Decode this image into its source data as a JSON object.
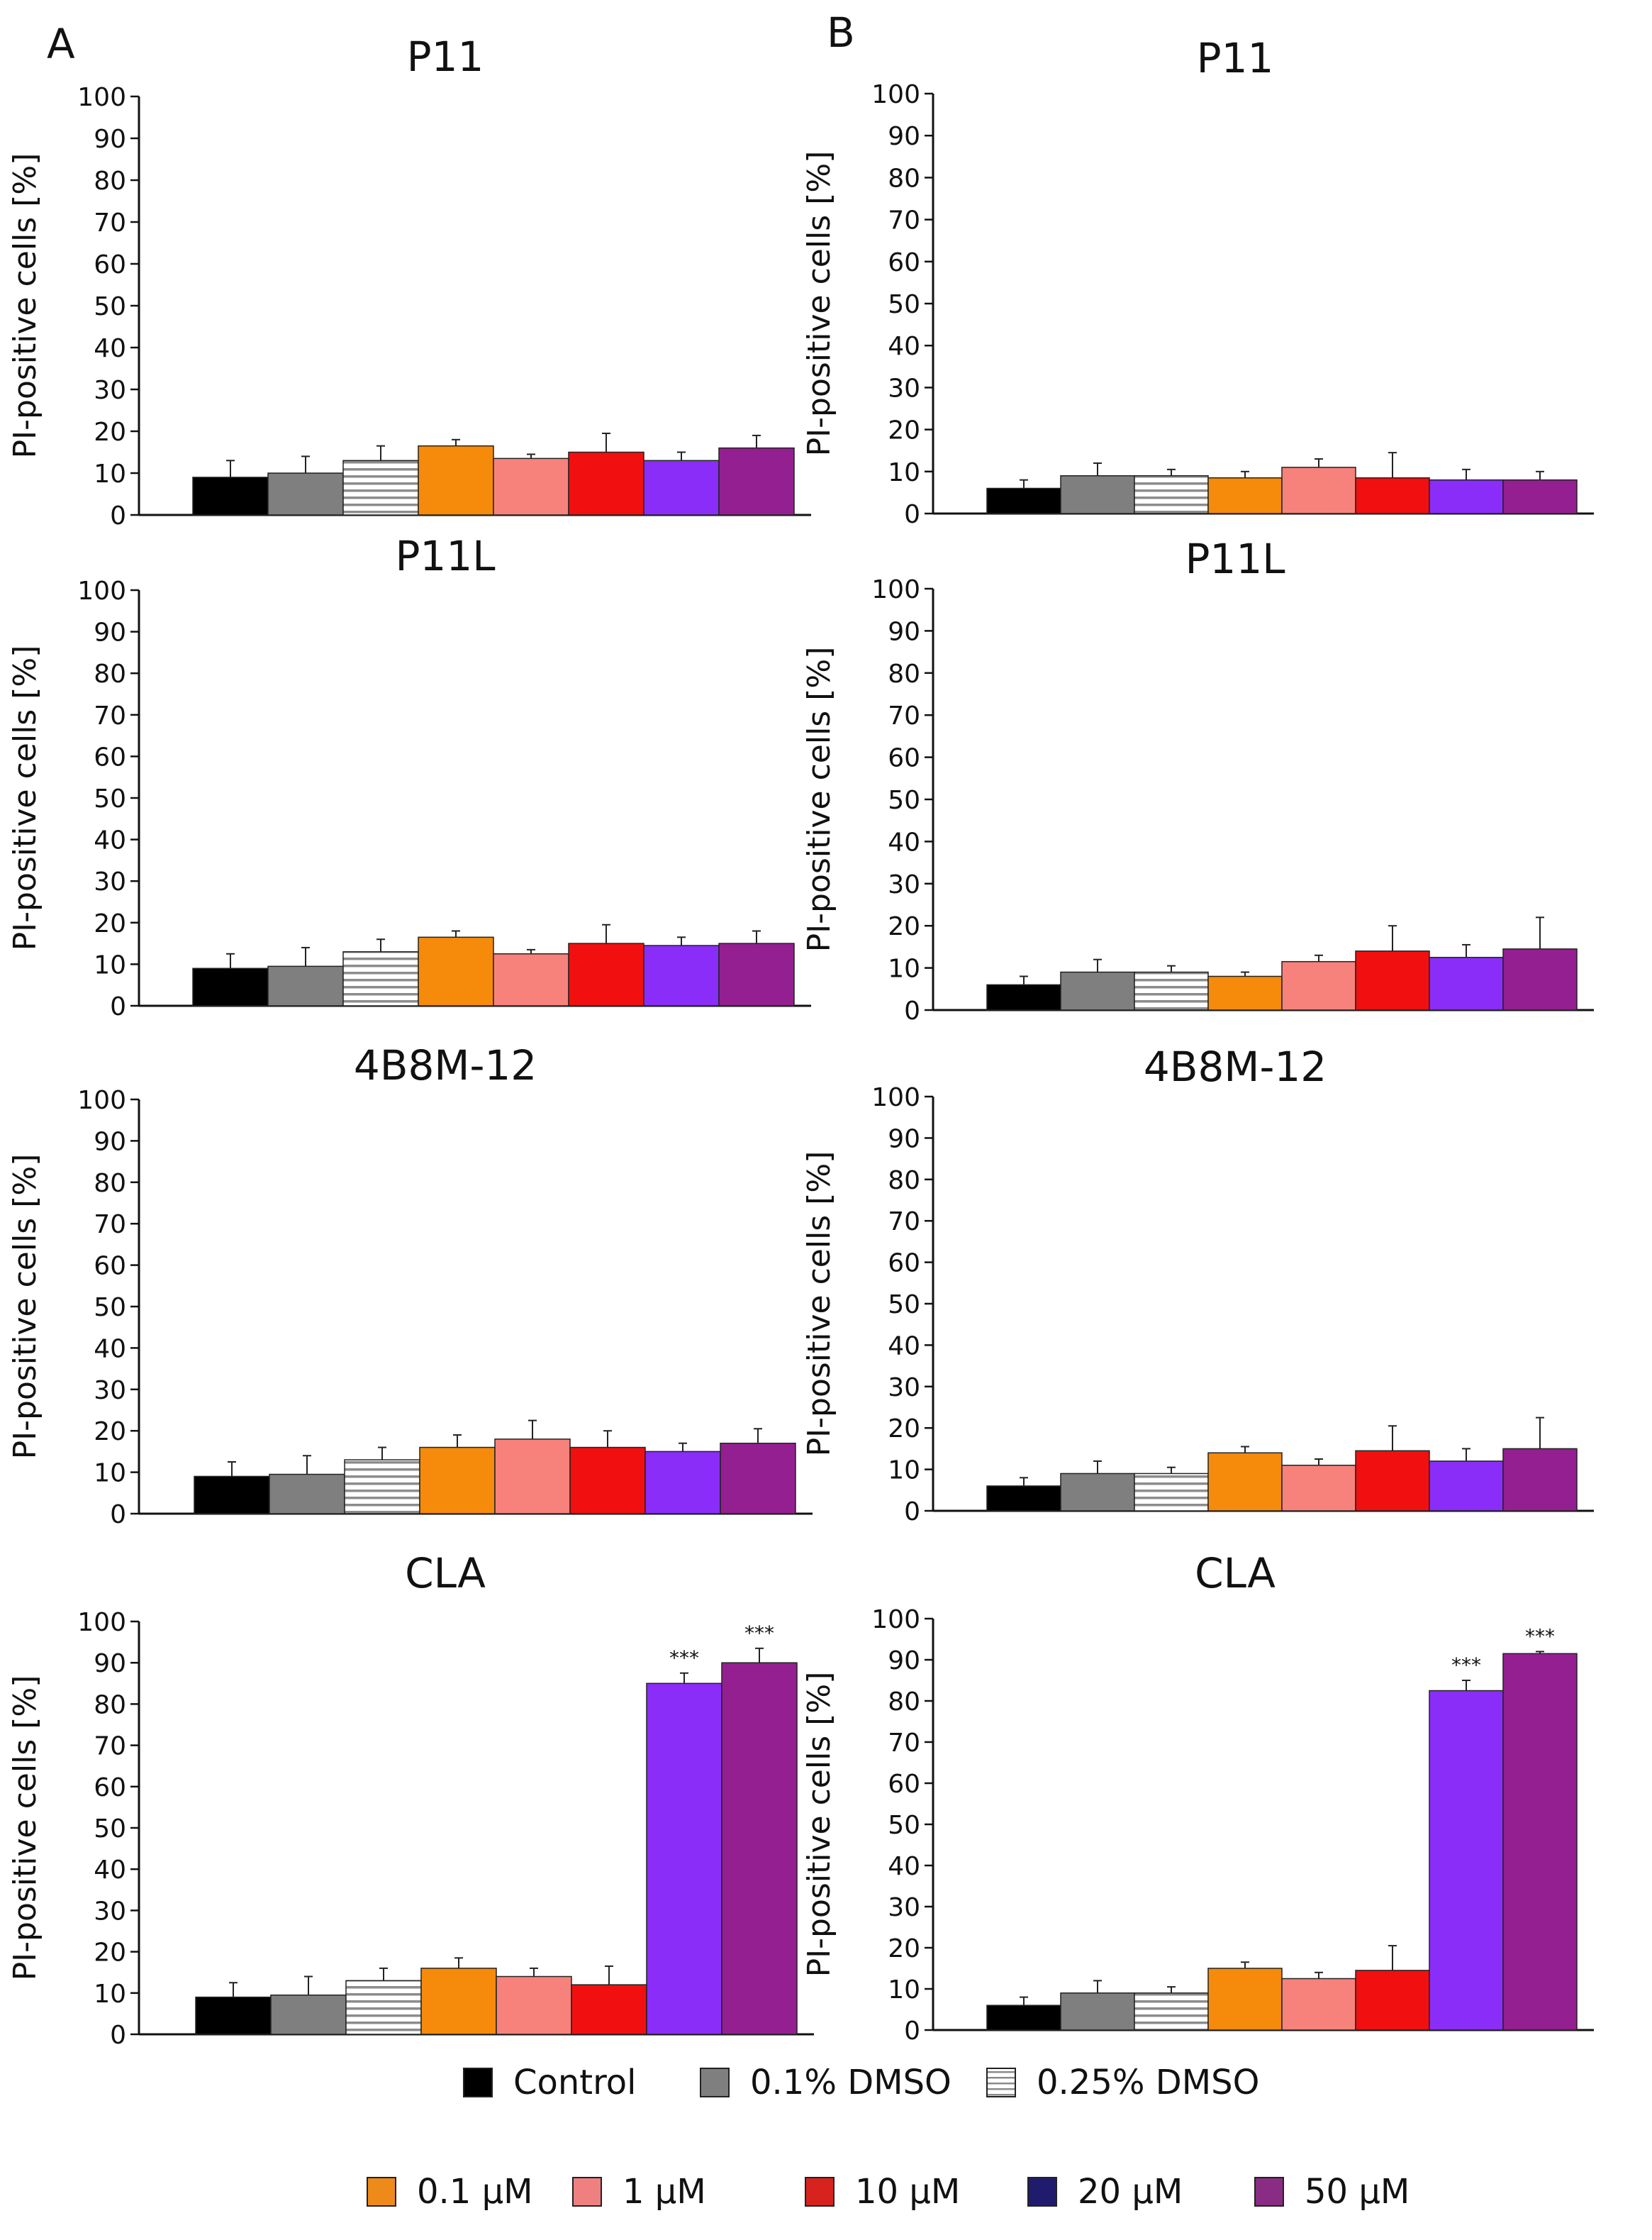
{
  "figure": {
    "panel_letters": [
      "A",
      "B"
    ],
    "ylabel": "PI-positive cells [%]"
  },
  "colors": {
    "control": "#000000",
    "dmso01": "#7f7f7f",
    "dmso025_fill": "#ffffff",
    "dmso025_stripe": "#8c8c8c",
    "c01": "#f58a0b",
    "c1": "#f7827b",
    "c10": "#f20f0f",
    "c20": "#8b2df8",
    "c50": "#941f90",
    "legend20": "#211b6e",
    "legend50": "#8a2c83",
    "legend10": "#d8221e",
    "legend1": "#f08080",
    "legend01": "#ee8a1a",
    "axis": "#111111"
  },
  "legend": {
    "row1": [
      {
        "label": "Control",
        "swatch": "control"
      },
      {
        "label": "0.1% DMSO",
        "swatch": "dmso01"
      },
      {
        "label": "0.25% DMSO",
        "swatch": "stripes"
      }
    ],
    "row2": [
      {
        "label": "0.1 µM",
        "swatch": "legend01"
      },
      {
        "label": "1 µM",
        "swatch": "legend1"
      },
      {
        "label": "10 µM",
        "swatch": "legend10"
      },
      {
        "label": "20 µM",
        "swatch": "legend20"
      },
      {
        "label": "50 µM",
        "swatch": "legend50"
      }
    ]
  },
  "chart_data": [
    {
      "panel": "A",
      "title": "P11",
      "type": "bar",
      "categories": [
        "Control",
        "0.1% DMSO",
        "0.25% DMSO",
        "0.1 µM",
        "1 µM",
        "10 µM",
        "20 µM",
        "50 µM"
      ],
      "values": [
        9,
        10,
        13,
        16.5,
        13.5,
        15,
        13,
        16
      ],
      "errors": [
        4,
        4,
        3.5,
        1.5,
        1,
        4.5,
        2,
        3
      ],
      "annotations": [
        "",
        "",
        "",
        "",
        "",
        "",
        "",
        ""
      ],
      "ylabel": "PI-positive cells [%]",
      "ylim": [
        0,
        100
      ],
      "yticks": [
        0,
        10,
        20,
        30,
        40,
        50,
        60,
        70,
        80,
        90,
        100
      ]
    },
    {
      "panel": "B",
      "title": "P11",
      "type": "bar",
      "categories": [
        "Control",
        "0.1% DMSO",
        "0.25% DMSO",
        "0.1 µM",
        "1 µM",
        "10 µM",
        "20 µM",
        "50 µM"
      ],
      "values": [
        6,
        9,
        9,
        8.5,
        11,
        8.5,
        8,
        8
      ],
      "errors": [
        2,
        3,
        1.5,
        1.5,
        2,
        6,
        2.5,
        2
      ],
      "annotations": [
        "",
        "",
        "",
        "",
        "",
        "",
        "",
        ""
      ],
      "ylabel": "PI-positive cells [%]",
      "ylim": [
        0,
        100
      ],
      "yticks": [
        0,
        10,
        20,
        30,
        40,
        50,
        60,
        70,
        80,
        90,
        100
      ]
    },
    {
      "panel": "A",
      "title": "P11L",
      "type": "bar",
      "categories": [
        "Control",
        "0.1% DMSO",
        "0.25% DMSO",
        "0.1 µM",
        "1 µM",
        "10 µM",
        "20 µM",
        "50 µM"
      ],
      "values": [
        9,
        9.5,
        13,
        16.5,
        12.5,
        15,
        14.5,
        15
      ],
      "errors": [
        3.5,
        4.5,
        3,
        1.5,
        1,
        4.5,
        2,
        3
      ],
      "annotations": [
        "",
        "",
        "",
        "",
        "",
        "",
        "",
        ""
      ],
      "ylabel": "PI-positive cells [%]",
      "ylim": [
        0,
        100
      ],
      "yticks": [
        0,
        10,
        20,
        30,
        40,
        50,
        60,
        70,
        80,
        90,
        100
      ]
    },
    {
      "panel": "B",
      "title": "P11L",
      "type": "bar",
      "categories": [
        "Control",
        "0.1% DMSO",
        "0.25% DMSO",
        "0.1 µM",
        "1 µM",
        "10 µM",
        "20 µM",
        "50 µM"
      ],
      "values": [
        6,
        9,
        9,
        8,
        11.5,
        14,
        12.5,
        14.5
      ],
      "errors": [
        2,
        3,
        1.5,
        1,
        1.5,
        6,
        3,
        7.5
      ],
      "annotations": [
        "",
        "",
        "",
        "",
        "",
        "",
        "",
        ""
      ],
      "ylabel": "PI-positive cells [%]",
      "ylim": [
        0,
        100
      ],
      "yticks": [
        0,
        10,
        20,
        30,
        40,
        50,
        60,
        70,
        80,
        90,
        100
      ]
    },
    {
      "panel": "A",
      "title": "4B8M-12",
      "type": "bar",
      "categories": [
        "Control",
        "0.1% DMSO",
        "0.25% DMSO",
        "0.1 µM",
        "1 µM",
        "10 µM",
        "20 µM",
        "50 µM"
      ],
      "values": [
        9,
        9.5,
        13,
        16,
        18,
        16,
        15,
        17
      ],
      "errors": [
        3.5,
        4.5,
        3,
        3,
        4.5,
        4,
        2,
        3.5
      ],
      "annotations": [
        "",
        "",
        "",
        "",
        "",
        "",
        "",
        ""
      ],
      "ylabel": "PI-positive cells [%]",
      "ylim": [
        0,
        100
      ],
      "yticks": [
        0,
        10,
        20,
        30,
        40,
        50,
        60,
        70,
        80,
        90,
        100
      ]
    },
    {
      "panel": "B",
      "title": "4B8M-12",
      "type": "bar",
      "categories": [
        "Control",
        "0.1% DMSO",
        "0.25% DMSO",
        "0.1 µM",
        "1 µM",
        "10 µM",
        "20 µM",
        "50 µM"
      ],
      "values": [
        6,
        9,
        9,
        14,
        11,
        14.5,
        12,
        15
      ],
      "errors": [
        2,
        3,
        1.5,
        1.5,
        1.5,
        6,
        3,
        7.5
      ],
      "annotations": [
        "",
        "",
        "",
        "",
        "",
        "",
        "",
        ""
      ],
      "ylabel": "PI-positive cells [%]",
      "ylim": [
        0,
        100
      ],
      "yticks": [
        0,
        10,
        20,
        30,
        40,
        50,
        60,
        70,
        80,
        90,
        100
      ]
    },
    {
      "panel": "A",
      "title": "CLA",
      "type": "bar",
      "categories": [
        "Control",
        "0.1% DMSO",
        "0.25% DMSO",
        "0.1 µM",
        "1 µM",
        "10 µM",
        "20 µM",
        "50 µM"
      ],
      "values": [
        9,
        9.5,
        13,
        16,
        14,
        12,
        85,
        90
      ],
      "errors": [
        3.5,
        4.5,
        3,
        2.5,
        2,
        4.5,
        2.5,
        3.5
      ],
      "annotations": [
        "",
        "",
        "",
        "",
        "",
        "",
        "***",
        "***"
      ],
      "ylabel": "PI-positive cells [%]",
      "ylim": [
        0,
        100
      ],
      "yticks": [
        0,
        10,
        20,
        30,
        40,
        50,
        60,
        70,
        80,
        90,
        100
      ]
    },
    {
      "panel": "B",
      "title": "CLA",
      "type": "bar",
      "categories": [
        "Control",
        "0.1% DMSO",
        "0.25% DMSO",
        "0.1 µM",
        "1 µM",
        "10 µM",
        "20 µM",
        "50 µM"
      ],
      "values": [
        6,
        9,
        9,
        15,
        12.5,
        14.5,
        82.5,
        91.5
      ],
      "errors": [
        2,
        3,
        1.5,
        1.5,
        1.5,
        6,
        2.5,
        0.5
      ],
      "annotations": [
        "",
        "",
        "",
        "",
        "",
        "",
        "***",
        "***"
      ],
      "ylabel": "PI-positive cells [%]",
      "ylim": [
        0,
        100
      ],
      "yticks": [
        0,
        10,
        20,
        30,
        40,
        50,
        60,
        70,
        80,
        90,
        100
      ]
    }
  ]
}
